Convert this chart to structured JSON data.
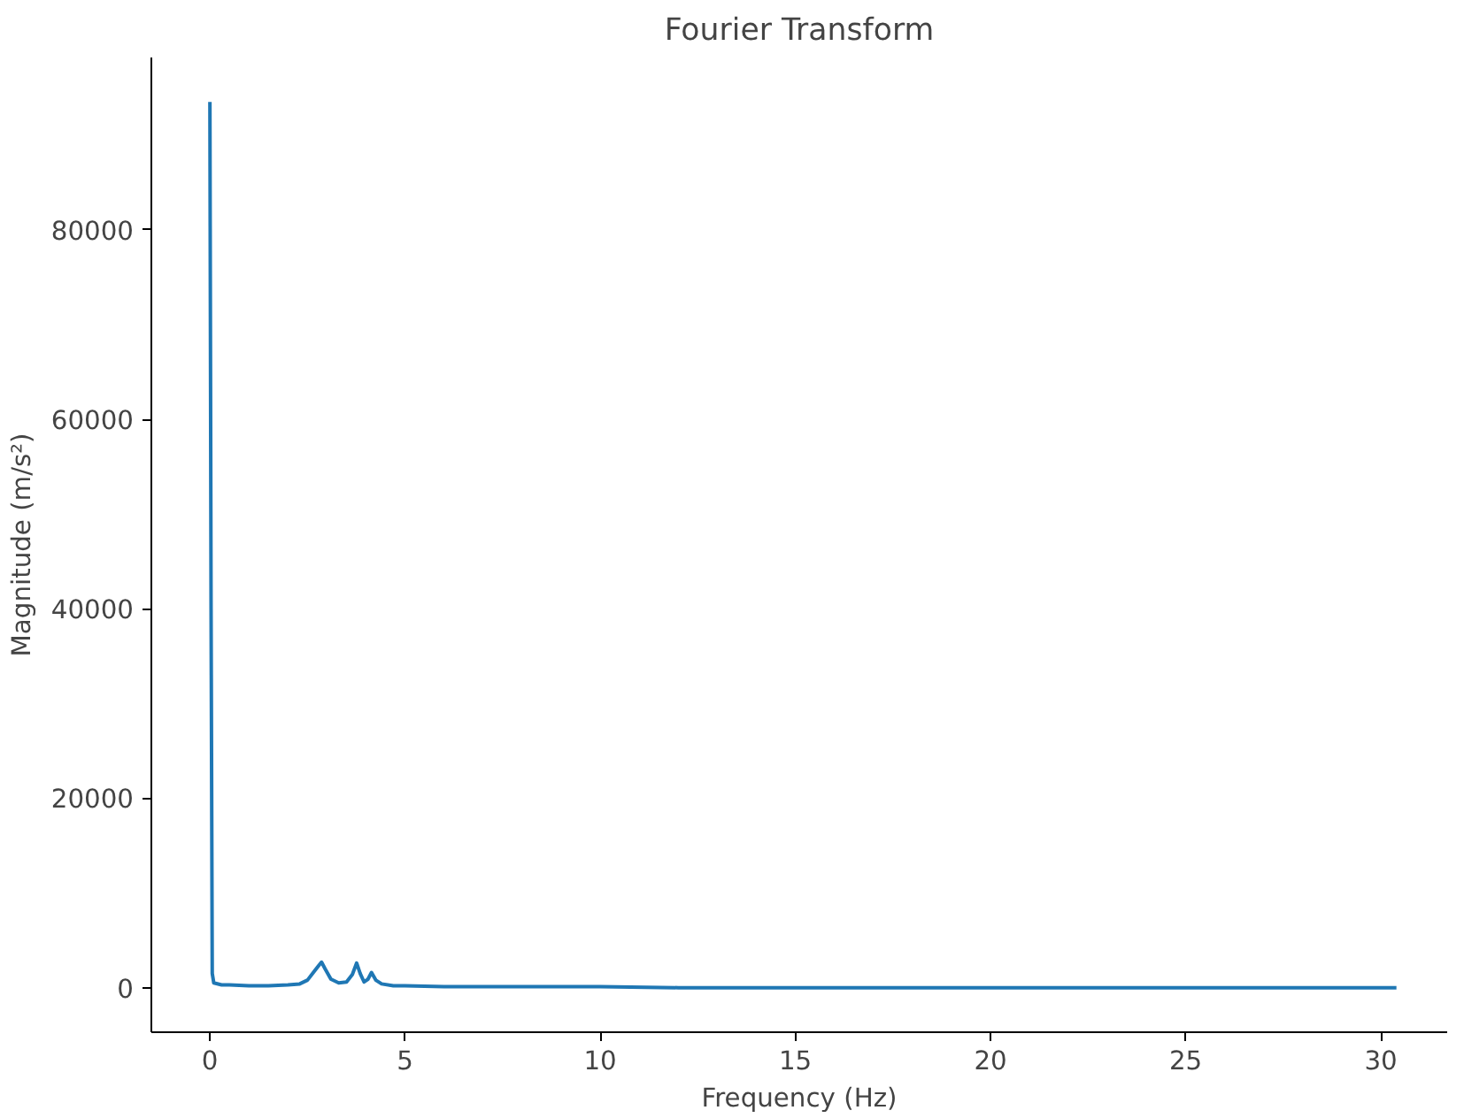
{
  "chart_data": {
    "type": "line",
    "title": "Fourier Transform",
    "xlabel": "Frequency (Hz)",
    "ylabel": "Magnitude (m/s²)",
    "series": [
      {
        "color": "#1f77b4",
        "x": [
          0,
          0.03,
          0.06,
          0.1,
          0.3,
          0.5,
          1,
          1.5,
          2,
          2.3,
          2.5,
          2.65,
          2.8,
          2.86,
          2.95,
          3.1,
          3.3,
          3.5,
          3.65,
          3.76,
          3.85,
          3.95,
          4.05,
          4.14,
          4.25,
          4.4,
          4.7,
          5,
          6,
          7,
          8,
          10,
          12,
          15,
          18,
          20,
          25,
          30.4
        ],
        "values": [
          93500,
          40000,
          1500,
          500,
          300,
          300,
          200,
          200,
          300,
          400,
          800,
          1600,
          2400,
          2700,
          2000,
          900,
          500,
          600,
          1400,
          2600,
          1500,
          600,
          900,
          1600,
          800,
          400,
          200,
          200,
          100,
          100,
          100,
          100,
          0,
          0,
          0,
          0,
          0,
          0
        ]
      }
    ],
    "xlim": [
      -1.5,
      31.7
    ],
    "ylim": [
      -4700,
      98200
    ],
    "xticks": [
      0,
      5,
      10,
      15,
      20,
      25,
      30
    ],
    "yticks": [
      0,
      20000,
      40000,
      60000,
      80000
    ],
    "grid": false
  }
}
